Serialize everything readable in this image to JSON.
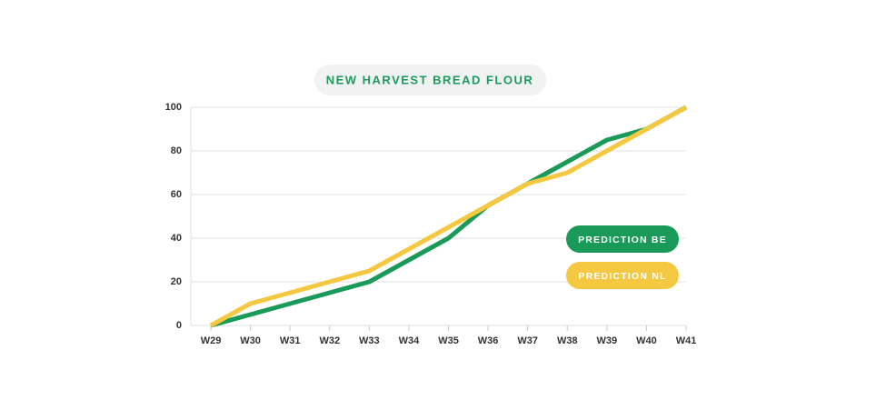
{
  "chart_data": {
    "type": "line",
    "title": "NEW HARVEST BREAD FLOUR",
    "categories": [
      "W29",
      "W30",
      "W31",
      "W32",
      "W33",
      "W34",
      "W35",
      "W36",
      "W37",
      "W38",
      "W39",
      "W40",
      "W41"
    ],
    "series": [
      {
        "name": "PREDICTION BE",
        "color": "#1a9a58",
        "values": [
          0,
          5,
          10,
          15,
          20,
          30,
          40,
          55,
          65,
          75,
          85,
          90,
          100
        ]
      },
      {
        "name": "PREDICTION NL",
        "color": "#f5c842",
        "values": [
          0,
          10,
          15,
          20,
          25,
          35,
          45,
          55,
          65,
          70,
          80,
          90,
          100
        ]
      }
    ],
    "ylim": [
      0,
      100
    ],
    "yticks": [
      0,
      20,
      40,
      60,
      80,
      100
    ],
    "grid": true
  }
}
